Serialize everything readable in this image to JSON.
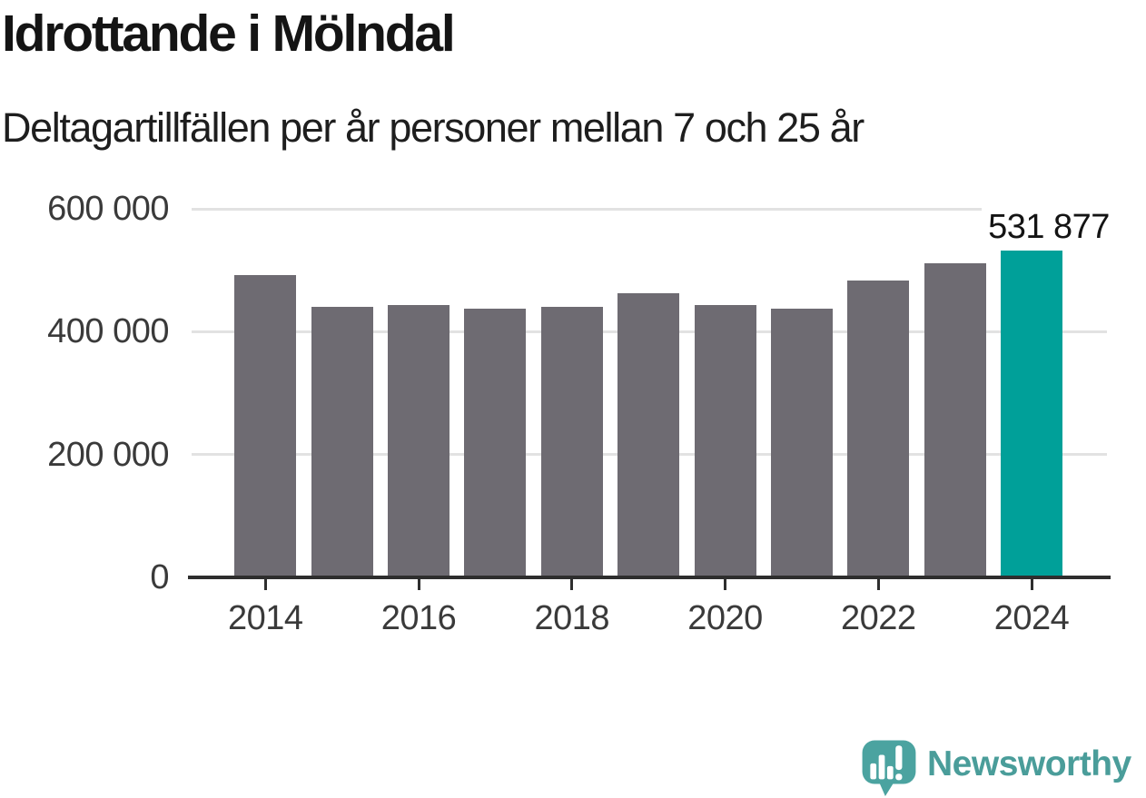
{
  "title": "Idrottande i Mölndal",
  "subtitle": "Deltagartillfällen per år personer mellan 7 och 25 år",
  "chart_data": {
    "type": "bar",
    "title": "Idrottande i Mölndal",
    "subtitle": "Deltagartillfällen per år personer mellan 7 och 25 år",
    "categories": [
      "2014",
      "2015",
      "2016",
      "2017",
      "2018",
      "2019",
      "2020",
      "2021",
      "2022",
      "2023",
      "2024"
    ],
    "values": [
      492000,
      440000,
      443000,
      438000,
      441000,
      462000,
      443000,
      438000,
      483000,
      512000,
      531877
    ],
    "highlight": {
      "category": "2024",
      "value": 531877,
      "label": "531 877"
    },
    "ylim": [
      0,
      600000
    ],
    "yticks": [
      {
        "value": 0,
        "label": "0"
      },
      {
        "value": 200000,
        "label": "200 000"
      },
      {
        "value": 400000,
        "label": "400 000"
      },
      {
        "value": 600000,
        "label": "600 000"
      }
    ],
    "xticks": [
      "2014",
      "2016",
      "2018",
      "2020",
      "2022",
      "2024"
    ],
    "grid": "horizontal",
    "legend": "none",
    "xlabel": "",
    "ylabel": "",
    "colors": {
      "bar": "#6e6b72",
      "highlight": "#00a099",
      "grid": "#e2e2e2",
      "axis": "#2e2e2e",
      "tick_label": "#3a3a3a",
      "annotation": "#141414"
    }
  },
  "footer": {
    "brand": "Newsworthy",
    "brand_color": "#4a9d9a",
    "logo": "newsworthy-speech-bubble-chart-icon"
  }
}
